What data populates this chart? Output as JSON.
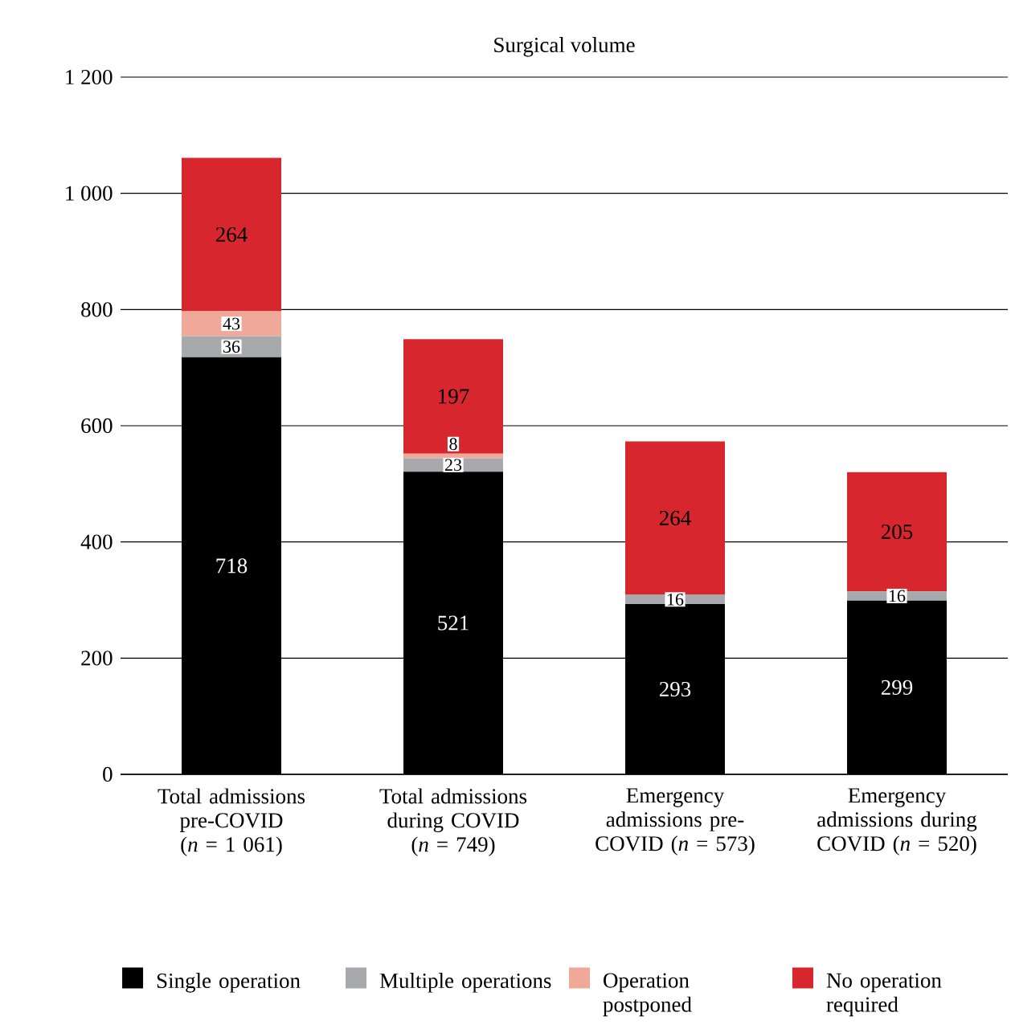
{
  "chart_data": {
    "type": "bar",
    "stacked": true,
    "title": "Surgical volume",
    "categories": [
      "Total admissions pre-COVID (*n* = 1 061)",
      "Total admissions during COVID (*n* = 749)",
      "Emergency admissions pre-COVID (*n* = 573)",
      "Emergency admissions during COVID (*n* = 520)"
    ],
    "series": [
      {
        "name": "Single operation",
        "color": "#000000",
        "values": [
          718,
          521,
          293,
          299
        ]
      },
      {
        "name": "Multiple operations",
        "color": "#a7a9ac",
        "values": [
          36,
          23,
          16,
          16
        ]
      },
      {
        "name": "Operation postponed",
        "color": "#f0a898",
        "values": [
          43,
          8,
          null,
          null
        ]
      },
      {
        "name": "No operation required",
        "color": "#d7262e",
        "values": [
          264,
          197,
          264,
          205
        ]
      }
    ],
    "ylim": [
      0,
      1200
    ],
    "yticks": [
      0,
      200,
      400,
      600,
      800,
      {
        "value": 1000,
        "label": "1 000"
      },
      {
        "value": 1200,
        "label": "1 200"
      }
    ],
    "grid": "y",
    "legend": "bottom",
    "data_labels": true
  }
}
